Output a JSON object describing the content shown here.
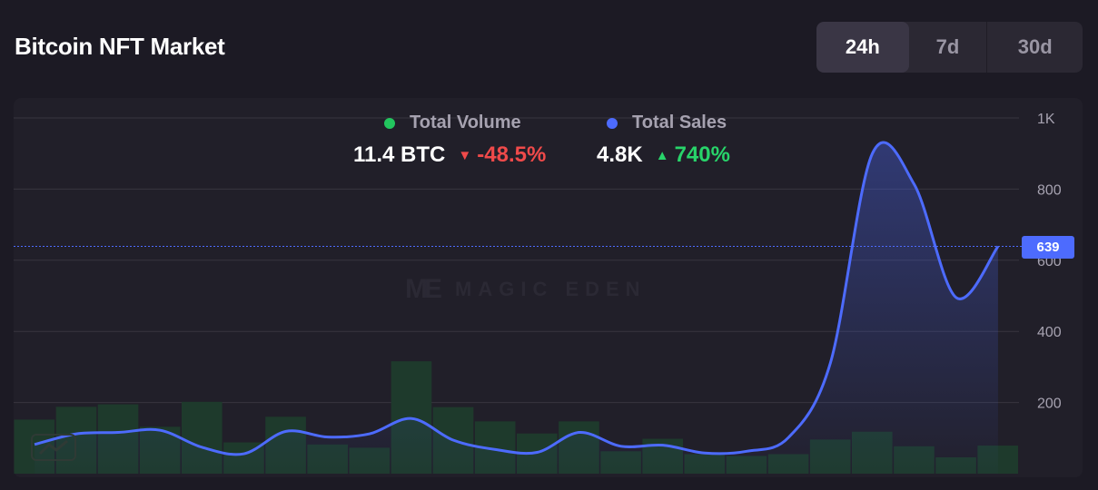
{
  "title": "Bitcoin NFT Market",
  "range_tabs": [
    {
      "label": "24h",
      "selected": true
    },
    {
      "label": "7d",
      "selected": false
    },
    {
      "label": "30d",
      "selected": false
    }
  ],
  "legend": {
    "volume": {
      "label": "Total Volume",
      "value": "11.4 BTC",
      "change": "-48.5%",
      "direction": "down",
      "dot_color": "#22c55e",
      "change_color": "#f04a4a"
    },
    "sales": {
      "label": "Total Sales",
      "value": "4.8K",
      "change": "740%",
      "direction": "up",
      "dot_color": "#4d6bfe",
      "change_color": "#28d46a"
    }
  },
  "watermark": {
    "logo": "ME",
    "text": "MAGIC EDEN"
  },
  "current_value_badge": "639",
  "colors": {
    "line": "#4d6bfe",
    "bar_fill": "#1e3a2c",
    "grid": "#38353f",
    "axis_text": "#a6a2b0"
  },
  "chart_data": {
    "type": "bar+line",
    "series": [
      {
        "name": "Total Volume",
        "type": "bar",
        "values": [
          152,
          188,
          195,
          132,
          202,
          88,
          160,
          82,
          73,
          316,
          187,
          147,
          113,
          147,
          63,
          98,
          55,
          50,
          55,
          96,
          118,
          77,
          46,
          79
        ]
      },
      {
        "name": "Total Sales",
        "type": "line",
        "values": [
          82,
          112,
          116,
          122,
          74,
          56,
          119,
          103,
          112,
          155,
          94,
          68,
          60,
          116,
          77,
          80,
          58,
          63,
          102,
          312,
          900,
          813,
          495,
          639
        ]
      }
    ],
    "y_axis": {
      "ticks": [
        "200",
        "400",
        "600",
        "800",
        "1K"
      ],
      "tick_values": [
        200,
        400,
        600,
        800,
        1000
      ],
      "ylim": [
        0,
        1000
      ],
      "position": "right"
    },
    "current_value": 639,
    "grid": true,
    "legend_position": "top-center"
  }
}
